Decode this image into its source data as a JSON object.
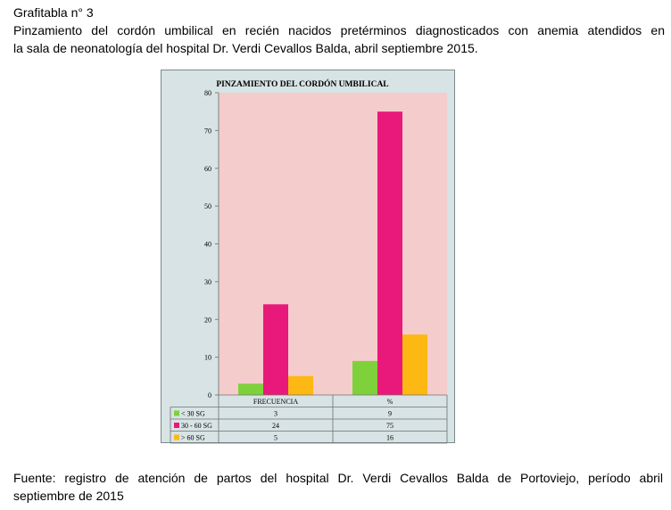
{
  "heading": {
    "label": "Grafitabla  n° 3",
    "caption_line1": "Pinzamiento del cordón umbilical en recién nacidos pretérminos diagnosticados con anemia atendidos en",
    "caption_line2": "la sala de neonatología del hospital Dr. Verdi Cevallos Balda, abril  septiembre  2015."
  },
  "footer": {
    "source_line1": "Fuente: registro de atención de partos del hospital Dr. Verdi  Cevallos Balda de Portoviejo, período abril",
    "source_line2": "septiembre de 2015"
  },
  "chart_data": {
    "type": "bar",
    "title": "PINZAMIENTO DEL CORDÓN UMBILICAL",
    "categories": [
      "FRECUENCIA",
      "%"
    ],
    "series": [
      {
        "name": "< 30 SG",
        "values": [
          3,
          9
        ],
        "color": "#7ed13a",
        "table_values": [
          "3",
          "9"
        ]
      },
      {
        "name": "30 - 60 SG",
        "values": [
          24,
          75
        ],
        "color": "#e8197a",
        "table_values": [
          "24",
          "75"
        ]
      },
      {
        "name": "> 60 SG",
        "values": [
          5,
          16
        ],
        "color": "#fdb813",
        "table_values": [
          "5",
          "16"
        ]
      }
    ],
    "ylim": [
      0,
      80
    ],
    "yticks": [
      0,
      10,
      20,
      30,
      40,
      50,
      60,
      70,
      80
    ],
    "xlabel": "",
    "ylabel": "",
    "grid": false,
    "legend": "data-table",
    "colors": {
      "plot_background": "#f5cccc",
      "frame_background": "#d7e3e4"
    }
  }
}
